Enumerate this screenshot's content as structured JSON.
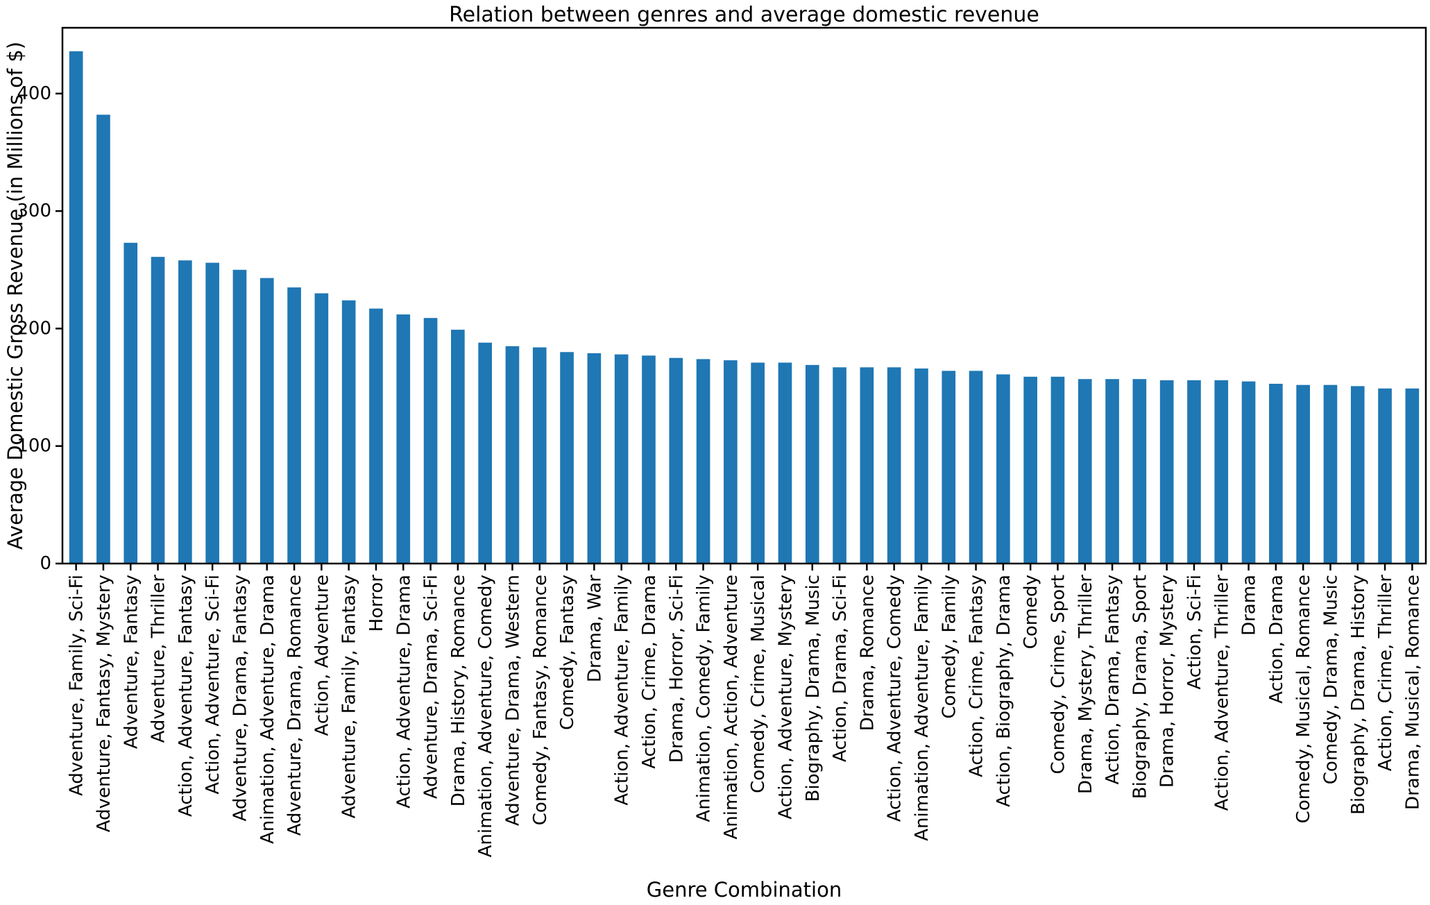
{
  "chart_data": {
    "type": "bar",
    "title": "Relation between genres and average domestic revenue",
    "xlabel": "Genre Combination",
    "ylabel": "Average Domestic Gross Revenue (in Millions of $)",
    "ylim": [
      0,
      456
    ],
    "yticks": [
      0,
      100,
      200,
      300,
      400
    ],
    "grid": false,
    "bar_color": "#1f77b4",
    "categories": [
      "Adventure, Family, Sci-Fi",
      "Adventure, Fantasy, Mystery",
      "Adventure, Fantasy",
      "Adventure, Thriller",
      "Action, Adventure, Fantasy",
      "Action, Adventure, Sci-Fi",
      "Adventure, Drama, Fantasy",
      "Animation, Adventure, Drama",
      "Adventure, Drama, Romance",
      "Action, Adventure",
      "Adventure, Family, Fantasy",
      "Horror",
      "Action, Adventure, Drama",
      "Adventure, Drama, Sci-Fi",
      "Drama, History, Romance",
      "Animation, Adventure, Comedy",
      "Adventure, Drama, Western",
      "Comedy, Fantasy, Romance",
      "Comedy, Fantasy",
      "Drama, War",
      "Action, Adventure, Family",
      "Action, Crime, Drama",
      "Drama, Horror, Sci-Fi",
      "Animation, Comedy, Family",
      "Animation, Action, Adventure",
      "Comedy, Crime, Musical",
      "Action, Adventure, Mystery",
      "Biography, Drama, Music",
      "Action, Drama, Sci-Fi",
      "Drama, Romance",
      "Action, Adventure, Comedy",
      "Animation, Adventure, Family",
      "Comedy, Family",
      "Action, Crime, Fantasy",
      "Action, Biography, Drama",
      "Comedy",
      "Comedy, Crime, Sport",
      "Drama, Mystery, Thriller",
      "Action, Drama, Fantasy",
      "Biography, Drama, Sport",
      "Drama, Horror, Mystery",
      "Action, Sci-Fi",
      "Action, Adventure, Thriller",
      "Drama",
      "Action, Drama",
      "Comedy, Musical, Romance",
      "Comedy, Drama, Music",
      "Biography, Drama, History",
      "Action, Crime, Thriller",
      "Drama, Musical, Romance"
    ],
    "values": [
      436,
      382,
      273,
      261,
      258,
      256,
      250,
      243,
      235,
      230,
      224,
      217,
      212,
      209,
      199,
      188,
      185,
      184,
      180,
      179,
      178,
      177,
      175,
      174,
      173,
      171,
      171,
      169,
      167,
      167,
      167,
      166,
      164,
      164,
      161,
      159,
      159,
      157,
      157,
      157,
      156,
      156,
      156,
      155,
      153,
      152,
      152,
      151,
      149,
      149
    ]
  }
}
